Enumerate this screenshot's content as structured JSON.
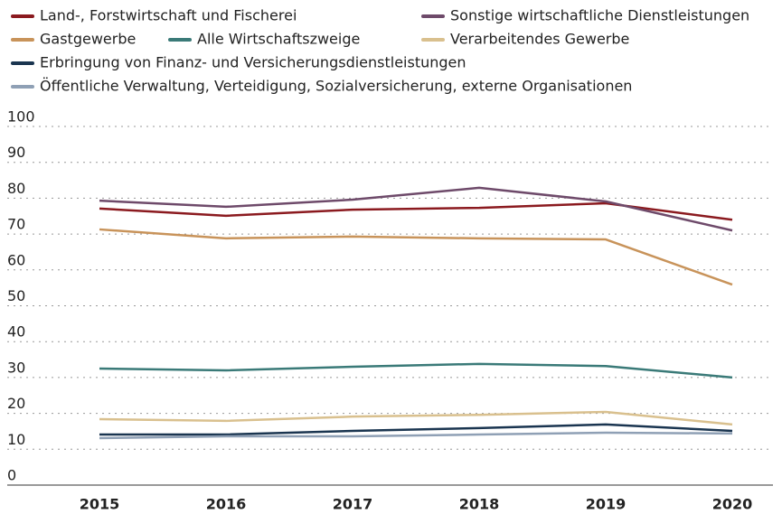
{
  "chart_data": {
    "type": "line",
    "categories": [
      "2015",
      "2016",
      "2017",
      "2018",
      "2019",
      "2020"
    ],
    "series": [
      {
        "name": "Land-, Forstwirtschaft und Fischerei",
        "color": "#8b1a1f",
        "values": [
          77.1,
          75.1,
          76.8,
          77.3,
          78.6,
          74.0
        ]
      },
      {
        "name": "Sonstige wirtschaftliche Dienstleistungen",
        "color": "#6e4a6a",
        "values": [
          79.3,
          77.6,
          79.6,
          82.9,
          79.1,
          71.0
        ]
      },
      {
        "name": "Gastgewerbe",
        "color": "#c8935a",
        "values": [
          71.3,
          68.8,
          69.3,
          68.8,
          68.5,
          55.9
        ]
      },
      {
        "name": "Alle Wirtschaftszweige",
        "color": "#3a7a78",
        "values": [
          32.5,
          32.0,
          33.0,
          33.8,
          33.2,
          30.0
        ]
      },
      {
        "name": "Verarbeitendes Gewerbe",
        "color": "#d9c08e",
        "values": [
          18.4,
          17.9,
          19.1,
          19.6,
          20.4,
          16.9
        ]
      },
      {
        "name": "Erbringung von Finanz- und Versicherungsdienstleistungen",
        "color": "#1a3550",
        "values": [
          14.1,
          14.1,
          15.1,
          15.9,
          16.9,
          15.1
        ]
      },
      {
        "name": "Öffentliche Verwaltung, Verteidigung, Sozialversicherung, externe Organisationen",
        "color": "#8fa0b5",
        "values": [
          13.1,
          13.6,
          13.6,
          14.1,
          14.6,
          14.4
        ]
      }
    ],
    "ylim": [
      0,
      100
    ],
    "yticks": [
      0,
      10,
      20,
      30,
      40,
      50,
      60,
      70,
      80,
      90,
      100
    ],
    "grid": true
  }
}
